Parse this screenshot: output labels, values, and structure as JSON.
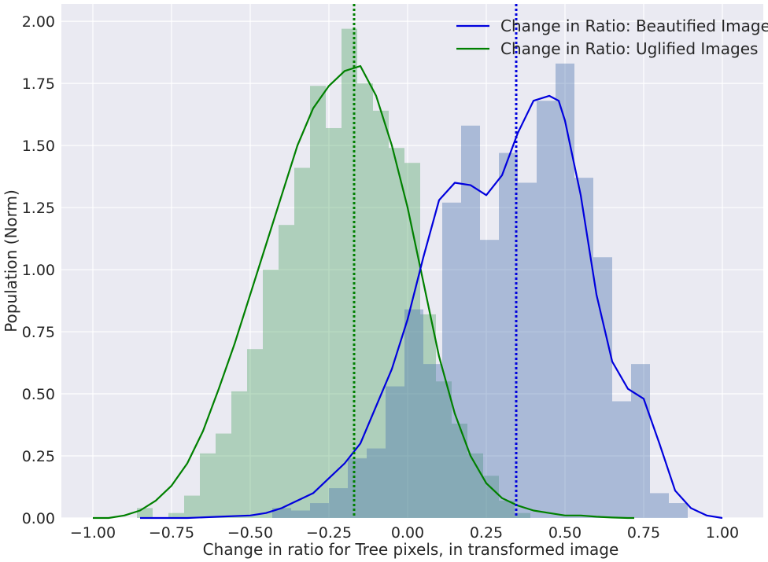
{
  "chart_data": {
    "type": "histogram+kde",
    "title": "",
    "xlabel": "Change in ratio for  Tree pixels, in transformed image",
    "ylabel": "Population (Norm)",
    "xlim": [
      -1.1,
      1.13
    ],
    "ylim": [
      0,
      2.07
    ],
    "xticks": [
      -1.0,
      -0.75,
      -0.5,
      -0.25,
      0.0,
      0.25,
      0.5,
      0.75,
      1.0
    ],
    "xtick_labels": [
      "−1.00",
      "−0.75",
      "−0.50",
      "−0.25",
      "0.00",
      "0.25",
      "0.50",
      "0.75",
      "1.00"
    ],
    "yticks": [
      0.0,
      0.25,
      0.5,
      0.75,
      1.0,
      1.25,
      1.5,
      1.75,
      2.0
    ],
    "ytick_labels": [
      "0.00",
      "0.25",
      "0.50",
      "0.75",
      "1.00",
      "1.25",
      "1.50",
      "1.75",
      "2.00"
    ],
    "grid": true,
    "legend_position": "top-right",
    "background": "#eaeaf2",
    "series": [
      {
        "name": "Change in Ratio: Uglified Images",
        "line_color": "#008000",
        "bar_color": "#55a868",
        "mean": -0.17,
        "bin_width": 0.05,
        "bin_starts": [
          -0.86,
          -0.81,
          -0.76,
          -0.71,
          -0.66,
          -0.61,
          -0.56,
          -0.51,
          -0.46,
          -0.41,
          -0.36,
          -0.31,
          -0.26,
          -0.21,
          -0.16,
          -0.11,
          -0.06,
          -0.01,
          0.04,
          0.09,
          0.14,
          0.19,
          0.24,
          0.29,
          0.34
        ],
        "values": [
          0.04,
          0.0,
          0.02,
          0.09,
          0.26,
          0.34,
          0.51,
          0.68,
          1.0,
          1.18,
          1.41,
          1.74,
          1.57,
          1.97,
          1.75,
          1.64,
          1.49,
          1.43,
          0.82,
          0.55,
          0.38,
          0.26,
          0.17,
          0.07,
          0.02
        ],
        "kde": {
          "x": [
            -1.0,
            -0.95,
            -0.9,
            -0.85,
            -0.8,
            -0.75,
            -0.7,
            -0.65,
            -0.6,
            -0.55,
            -0.5,
            -0.45,
            -0.4,
            -0.35,
            -0.3,
            -0.25,
            -0.2,
            -0.15,
            -0.1,
            -0.05,
            0.0,
            0.05,
            0.1,
            0.15,
            0.2,
            0.25,
            0.3,
            0.35,
            0.4,
            0.45,
            0.5,
            0.55,
            0.6,
            0.65,
            0.7,
            0.72
          ],
          "y": [
            0.0,
            0.0,
            0.01,
            0.03,
            0.07,
            0.13,
            0.22,
            0.35,
            0.52,
            0.7,
            0.9,
            1.1,
            1.3,
            1.5,
            1.65,
            1.74,
            1.8,
            1.82,
            1.7,
            1.5,
            1.25,
            0.95,
            0.65,
            0.42,
            0.25,
            0.14,
            0.08,
            0.05,
            0.03,
            0.02,
            0.01,
            0.01,
            0.005,
            0.002,
            0.0,
            0.0
          ]
        }
      },
      {
        "name": "Change in Ratio: Beautified Images",
        "line_color": "#0000dd",
        "bar_color": "#4c72b0",
        "mean": 0.345,
        "bin_width": 0.06,
        "bin_starts": [
          -0.43,
          -0.37,
          -0.31,
          -0.25,
          -0.19,
          -0.13,
          -0.07,
          -0.01,
          0.05,
          0.11,
          0.17,
          0.23,
          0.29,
          0.35,
          0.41,
          0.47,
          0.53,
          0.59,
          0.65,
          0.71,
          0.77,
          0.83
        ],
        "values": [
          0.04,
          0.03,
          0.06,
          0.12,
          0.24,
          0.28,
          0.53,
          0.84,
          0.62,
          1.27,
          1.58,
          1.12,
          1.47,
          1.35,
          1.68,
          1.83,
          1.37,
          1.05,
          0.47,
          0.62,
          0.1,
          0.06
        ],
        "kde": {
          "x": [
            -0.85,
            -0.7,
            -0.6,
            -0.5,
            -0.45,
            -0.4,
            -0.35,
            -0.3,
            -0.25,
            -0.2,
            -0.15,
            -0.1,
            -0.05,
            0.0,
            0.05,
            0.1,
            0.15,
            0.2,
            0.25,
            0.3,
            0.35,
            0.4,
            0.45,
            0.48,
            0.5,
            0.55,
            0.6,
            0.65,
            0.7,
            0.75,
            0.8,
            0.85,
            0.9,
            0.95,
            1.0
          ],
          "y": [
            0.0,
            0.0,
            0.005,
            0.01,
            0.02,
            0.04,
            0.07,
            0.1,
            0.16,
            0.22,
            0.3,
            0.45,
            0.6,
            0.8,
            1.05,
            1.28,
            1.35,
            1.34,
            1.3,
            1.38,
            1.55,
            1.68,
            1.7,
            1.68,
            1.6,
            1.3,
            0.9,
            0.63,
            0.52,
            0.48,
            0.3,
            0.11,
            0.04,
            0.01,
            0.0
          ]
        }
      }
    ],
    "legend_order": [
      1,
      0
    ]
  }
}
